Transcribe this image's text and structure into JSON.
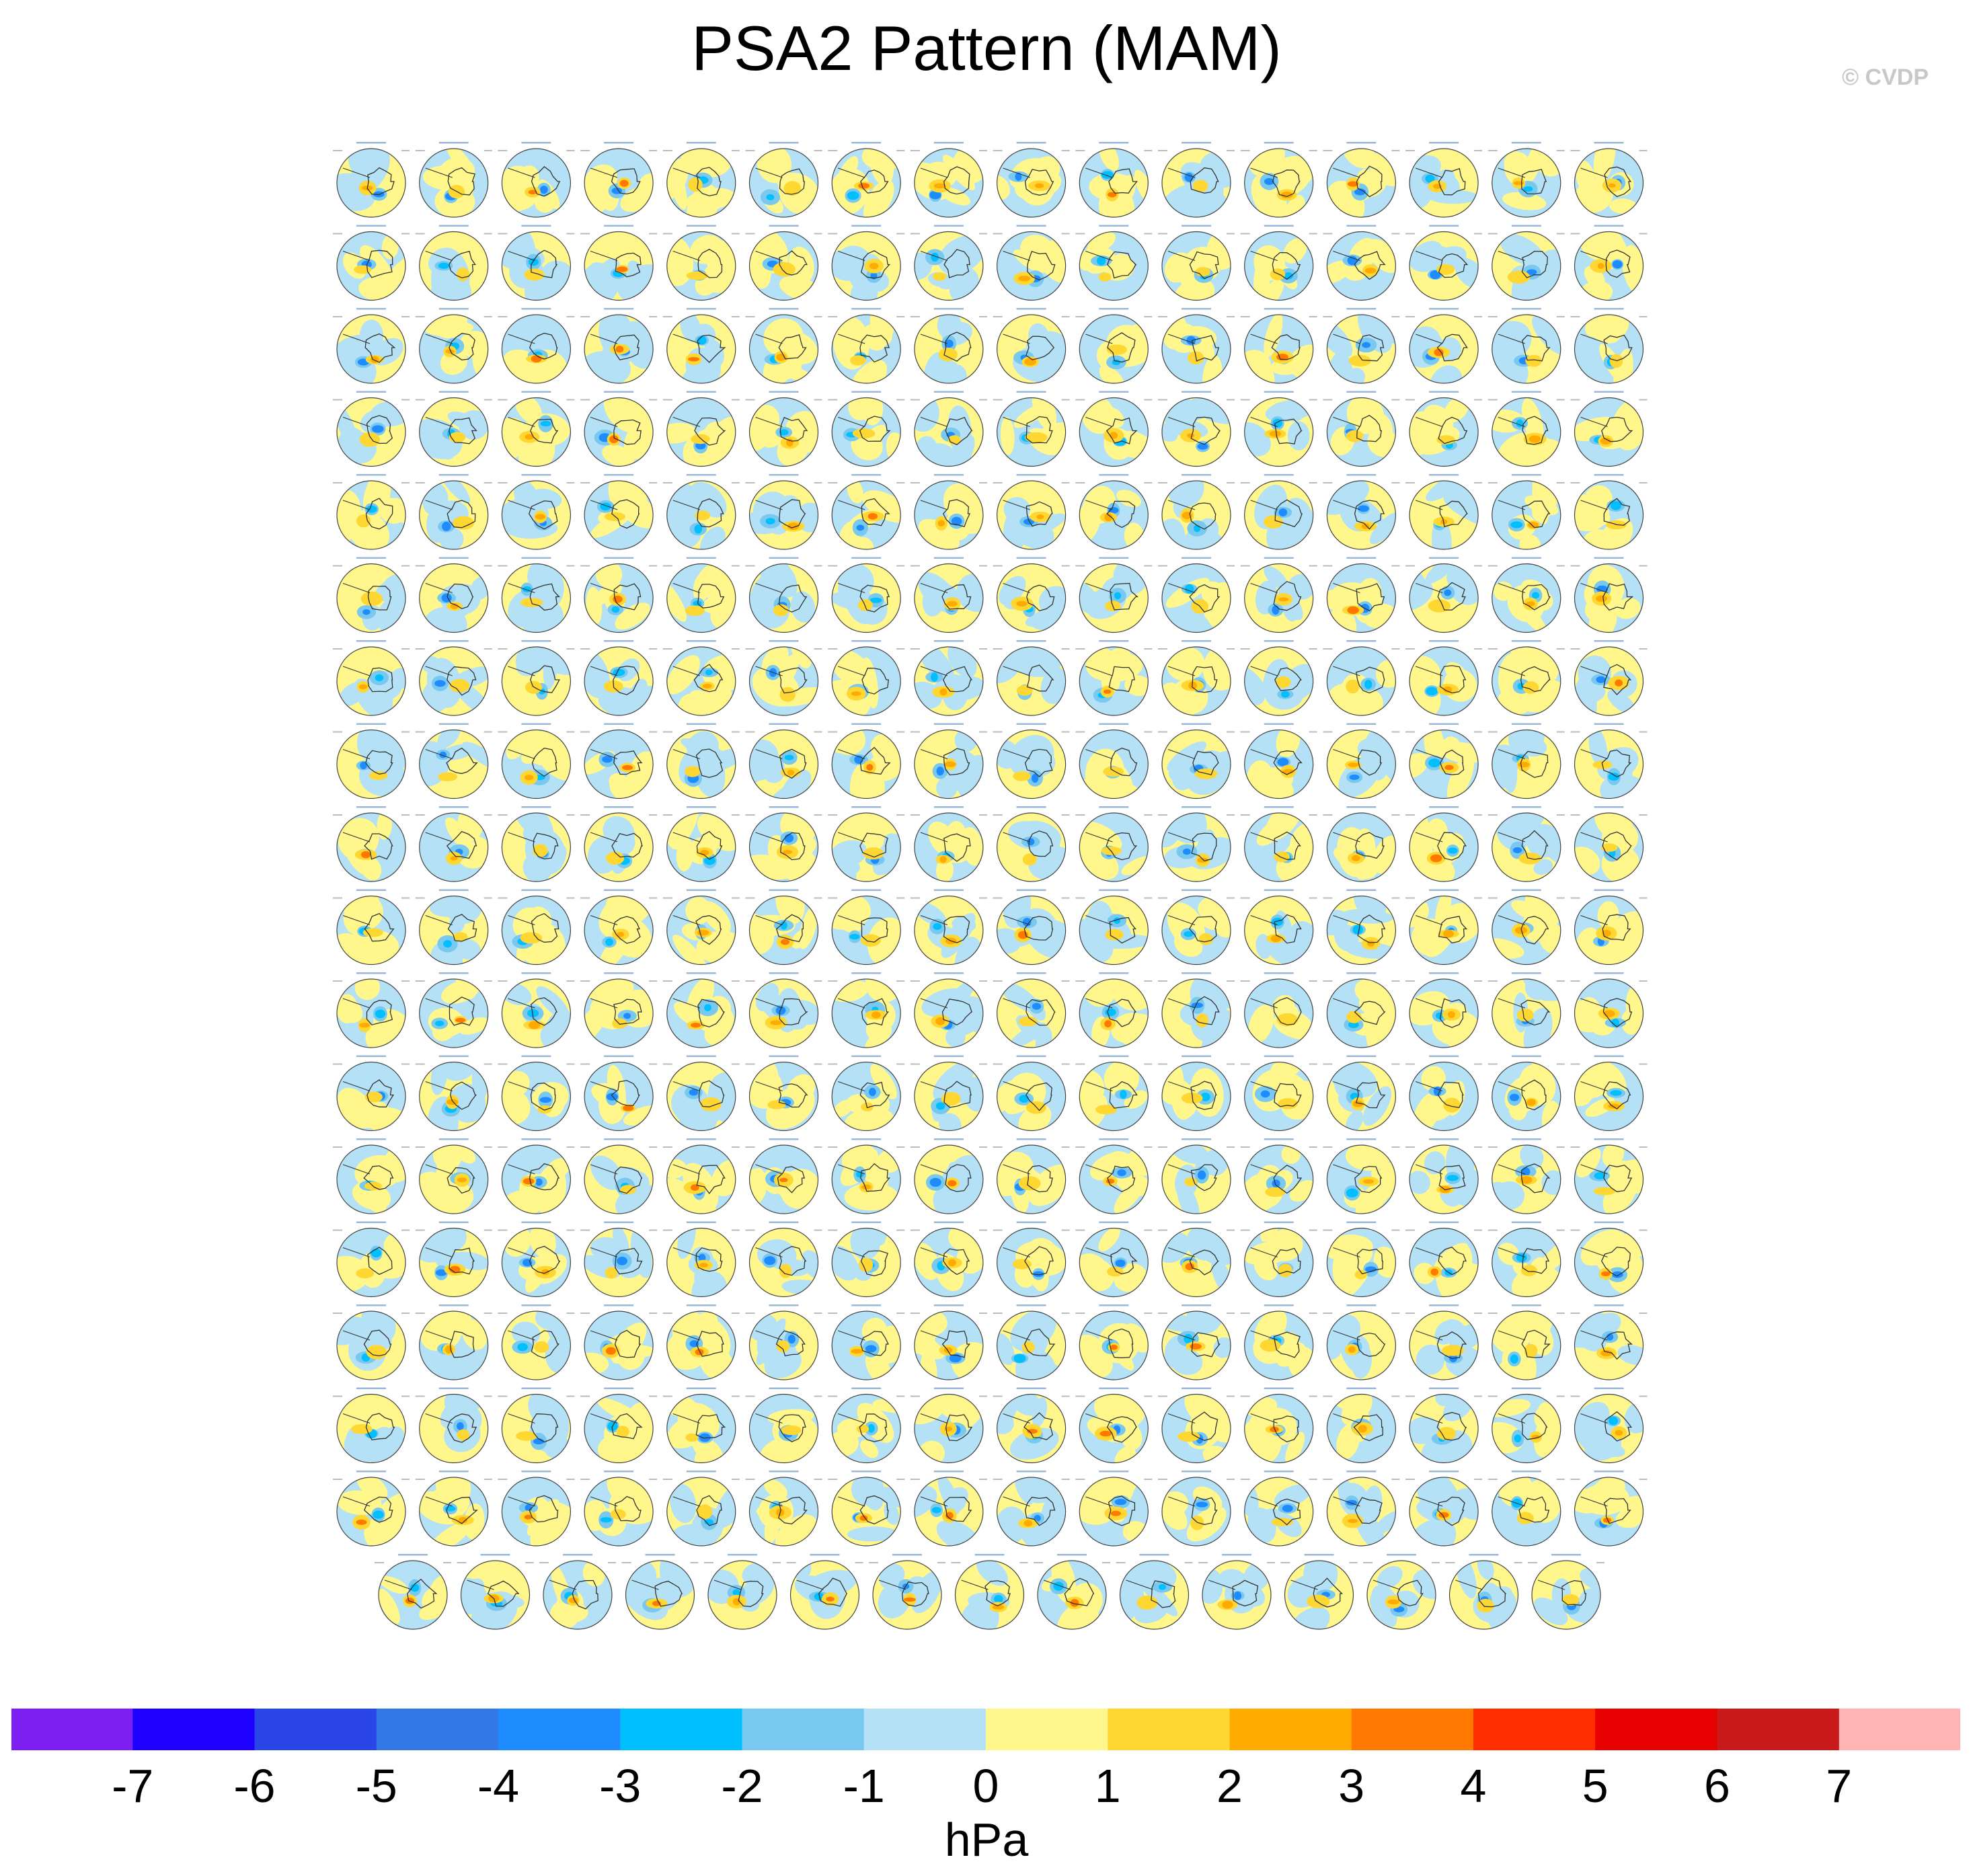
{
  "title": "PSA2 Pattern (MAM)",
  "copyright": "© CVDP",
  "chart_data": {
    "type": "heatmap",
    "title": "PSA2 Pattern (MAM)",
    "description_kind": "panel grid of Southern Hemisphere polar-stereographic sea level pressure anomaly maps",
    "panel_count": 287,
    "grid": {
      "rows_full": 17,
      "columns": 16,
      "last_row_panels": 15
    },
    "colorbar": {
      "label": "hPa",
      "tick_labels": [
        "-7",
        "-6",
        "-5",
        "-4",
        "-3",
        "-2",
        "-1",
        "0",
        "1",
        "2",
        "3",
        "4",
        "5",
        "6",
        "7"
      ],
      "colors": [
        "#7d1ff0",
        "#1e00ff",
        "#2a46e6",
        "#3278e6",
        "#1e8cff",
        "#00bfff",
        "#78c8f0",
        "#b4e1f5",
        "#fff78c",
        "#ffd732",
        "#ffaa00",
        "#ff7800",
        "#ff2d00",
        "#e60000",
        "#c81a1a",
        "#ffb4b4"
      ],
      "range": [
        -8,
        8
      ]
    },
    "map_colors": {
      "ocean_negative_weak": "#b4e1f5",
      "ocean_positive_weak": "#fff78c",
      "coastline": "#333333"
    }
  }
}
